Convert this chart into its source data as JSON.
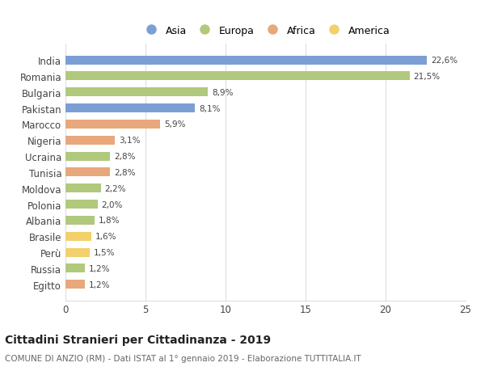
{
  "categories": [
    "India",
    "Romania",
    "Bulgaria",
    "Pakistan",
    "Marocco",
    "Nigeria",
    "Ucraina",
    "Tunisia",
    "Moldova",
    "Polonia",
    "Albania",
    "Brasile",
    "Perù",
    "Russia",
    "Egitto"
  ],
  "values": [
    22.6,
    21.5,
    8.9,
    8.1,
    5.9,
    3.1,
    2.8,
    2.8,
    2.2,
    2.0,
    1.8,
    1.6,
    1.5,
    1.2,
    1.2
  ],
  "labels": [
    "22,6%",
    "21,5%",
    "8,9%",
    "8,1%",
    "5,9%",
    "3,1%",
    "2,8%",
    "2,8%",
    "2,2%",
    "2,0%",
    "1,8%",
    "1,6%",
    "1,5%",
    "1,2%",
    "1,2%"
  ],
  "continents": [
    "Asia",
    "Europa",
    "Europa",
    "Asia",
    "Africa",
    "Africa",
    "Europa",
    "Africa",
    "Europa",
    "Europa",
    "Europa",
    "America",
    "America",
    "Europa",
    "Africa"
  ],
  "colors": {
    "Asia": "#7b9fd4",
    "Europa": "#b0c97d",
    "Africa": "#e8a87c",
    "America": "#f2d06b"
  },
  "legend_order": [
    "Asia",
    "Europa",
    "Africa",
    "America"
  ],
  "title": "Cittadini Stranieri per Cittadinanza - 2019",
  "subtitle": "COMUNE DI ANZIO (RM) - Dati ISTAT al 1° gennaio 2019 - Elaborazione TUTTITALIA.IT",
  "xlim": [
    0,
    25
  ],
  "xticks": [
    0,
    5,
    10,
    15,
    20,
    25
  ],
  "background_color": "#ffffff",
  "grid_color": "#dddddd",
  "bar_height": 0.55
}
